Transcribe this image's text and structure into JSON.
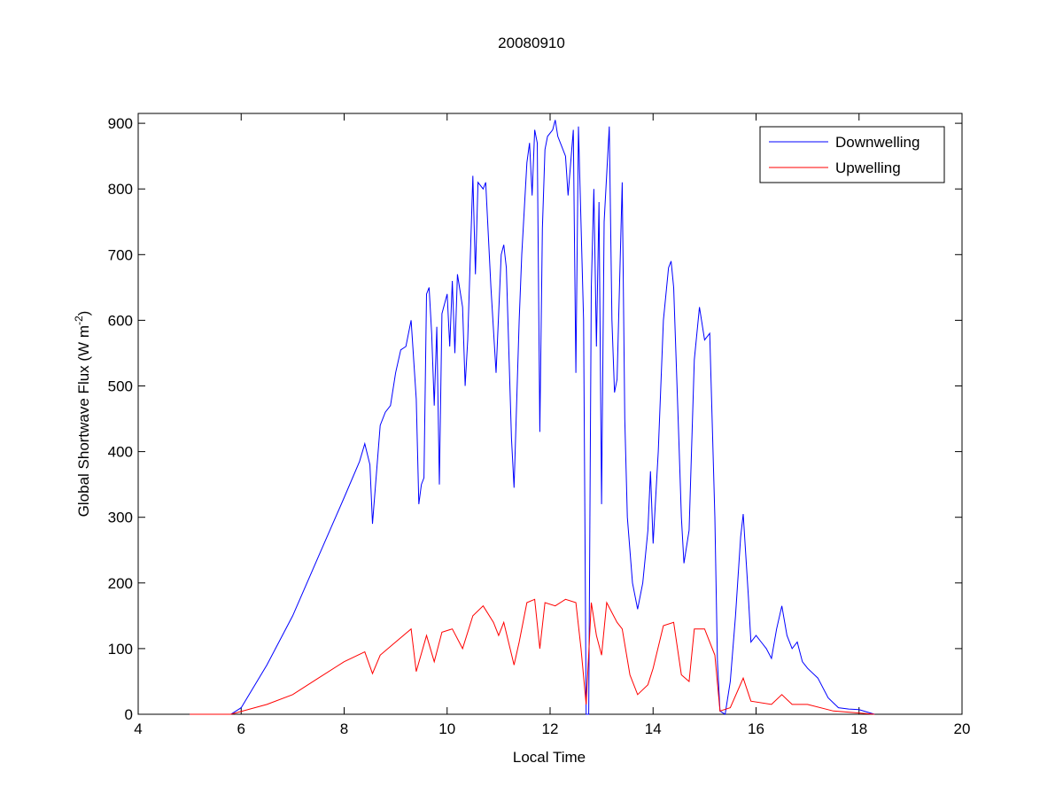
{
  "chart_data": {
    "type": "line",
    "title": "20080910",
    "xlabel": "Local Time",
    "ylabel": "Global Shortwave Flux (W m",
    "ylabel_sup": "-2",
    "ylabel_close": ")",
    "xlim": [
      4,
      20
    ],
    "ylim": [
      0,
      915
    ],
    "xticks": [
      4,
      6,
      8,
      10,
      12,
      14,
      16,
      18,
      20
    ],
    "yticks": [
      0,
      100,
      200,
      300,
      400,
      500,
      600,
      700,
      800,
      900
    ],
    "grid": false,
    "legend_position": "top-right",
    "series": [
      {
        "name": "Downwelling",
        "color": "#0000ff",
        "x": [
          5.0,
          5.8,
          6.0,
          6.5,
          7.0,
          7.5,
          8.0,
          8.3,
          8.4,
          8.5,
          8.55,
          8.7,
          8.8,
          8.9,
          9.0,
          9.1,
          9.2,
          9.3,
          9.4,
          9.45,
          9.5,
          9.55,
          9.6,
          9.65,
          9.7,
          9.75,
          9.8,
          9.85,
          9.9,
          10.0,
          10.05,
          10.1,
          10.15,
          10.2,
          10.3,
          10.35,
          10.4,
          10.5,
          10.55,
          10.6,
          10.7,
          10.75,
          10.85,
          10.95,
          11.05,
          11.1,
          11.15,
          11.25,
          11.3,
          11.4,
          11.45,
          11.55,
          11.6,
          11.65,
          11.7,
          11.75,
          11.8,
          11.85,
          11.9,
          11.95,
          12.05,
          12.1,
          12.15,
          12.3,
          12.35,
          12.45,
          12.5,
          12.55,
          12.65,
          12.7,
          12.75,
          12.8,
          12.85,
          12.9,
          12.95,
          13.0,
          13.05,
          13.15,
          13.2,
          13.25,
          13.3,
          13.4,
          13.45,
          13.5,
          13.6,
          13.7,
          13.8,
          13.9,
          13.95,
          14.0,
          14.1,
          14.2,
          14.3,
          14.35,
          14.4,
          14.5,
          14.55,
          14.6,
          14.7,
          14.8,
          14.9,
          15.0,
          15.1,
          15.2,
          15.25,
          15.3,
          15.4,
          15.5,
          15.6,
          15.7,
          15.75,
          15.85,
          15.9,
          16.0,
          16.1,
          16.2,
          16.3,
          16.4,
          16.5,
          16.6,
          16.7,
          16.8,
          16.9,
          17.0,
          17.2,
          17.4,
          17.6,
          17.8,
          18.0,
          18.3
        ],
        "y": [
          0,
          0,
          10,
          75,
          150,
          240,
          330,
          385,
          412,
          380,
          290,
          440,
          460,
          470,
          520,
          555,
          560,
          600,
          480,
          320,
          350,
          360,
          640,
          650,
          580,
          470,
          590,
          350,
          610,
          640,
          560,
          660,
          550,
          670,
          620,
          500,
          570,
          820,
          670,
          810,
          800,
          810,
          650,
          520,
          700,
          715,
          680,
          420,
          345,
          600,
          700,
          840,
          870,
          790,
          890,
          870,
          430,
          740,
          860,
          880,
          890,
          905,
          880,
          850,
          790,
          890,
          520,
          895,
          600,
          0,
          0,
          650,
          800,
          560,
          780,
          320,
          750,
          895,
          600,
          490,
          510,
          810,
          450,
          300,
          200,
          160,
          200,
          280,
          370,
          260,
          400,
          600,
          680,
          690,
          650,
          420,
          300,
          230,
          280,
          540,
          620,
          570,
          580,
          300,
          80,
          5,
          0,
          50,
          150,
          270,
          305,
          180,
          110,
          120,
          110,
          100,
          85,
          130,
          165,
          120,
          100,
          110,
          80,
          70,
          55,
          25,
          10,
          8,
          7,
          0
        ]
      },
      {
        "name": "Upwelling",
        "color": "#ff0000",
        "x": [
          5.0,
          5.8,
          6.5,
          7.0,
          7.5,
          8.0,
          8.4,
          8.55,
          8.7,
          9.0,
          9.3,
          9.4,
          9.6,
          9.75,
          9.9,
          10.1,
          10.3,
          10.5,
          10.7,
          10.9,
          11.0,
          11.1,
          11.3,
          11.4,
          11.55,
          11.7,
          11.8,
          11.9,
          12.1,
          12.3,
          12.5,
          12.6,
          12.7,
          12.8,
          12.9,
          13.0,
          13.1,
          13.3,
          13.4,
          13.55,
          13.7,
          13.9,
          14.0,
          14.2,
          14.4,
          14.55,
          14.7,
          14.8,
          15.0,
          15.2,
          15.3,
          15.5,
          15.75,
          15.9,
          16.3,
          16.5,
          16.7,
          17.0,
          17.5,
          18.3
        ],
        "y": [
          0,
          0,
          15,
          30,
          55,
          80,
          95,
          62,
          90,
          110,
          130,
          65,
          120,
          80,
          125,
          130,
          100,
          150,
          165,
          140,
          120,
          140,
          75,
          110,
          170,
          175,
          100,
          170,
          165,
          175,
          170,
          100,
          15,
          170,
          120,
          90,
          170,
          140,
          130,
          60,
          30,
          45,
          70,
          135,
          140,
          60,
          50,
          130,
          130,
          90,
          5,
          10,
          55,
          20,
          15,
          30,
          15,
          15,
          5,
          0
        ]
      }
    ]
  }
}
